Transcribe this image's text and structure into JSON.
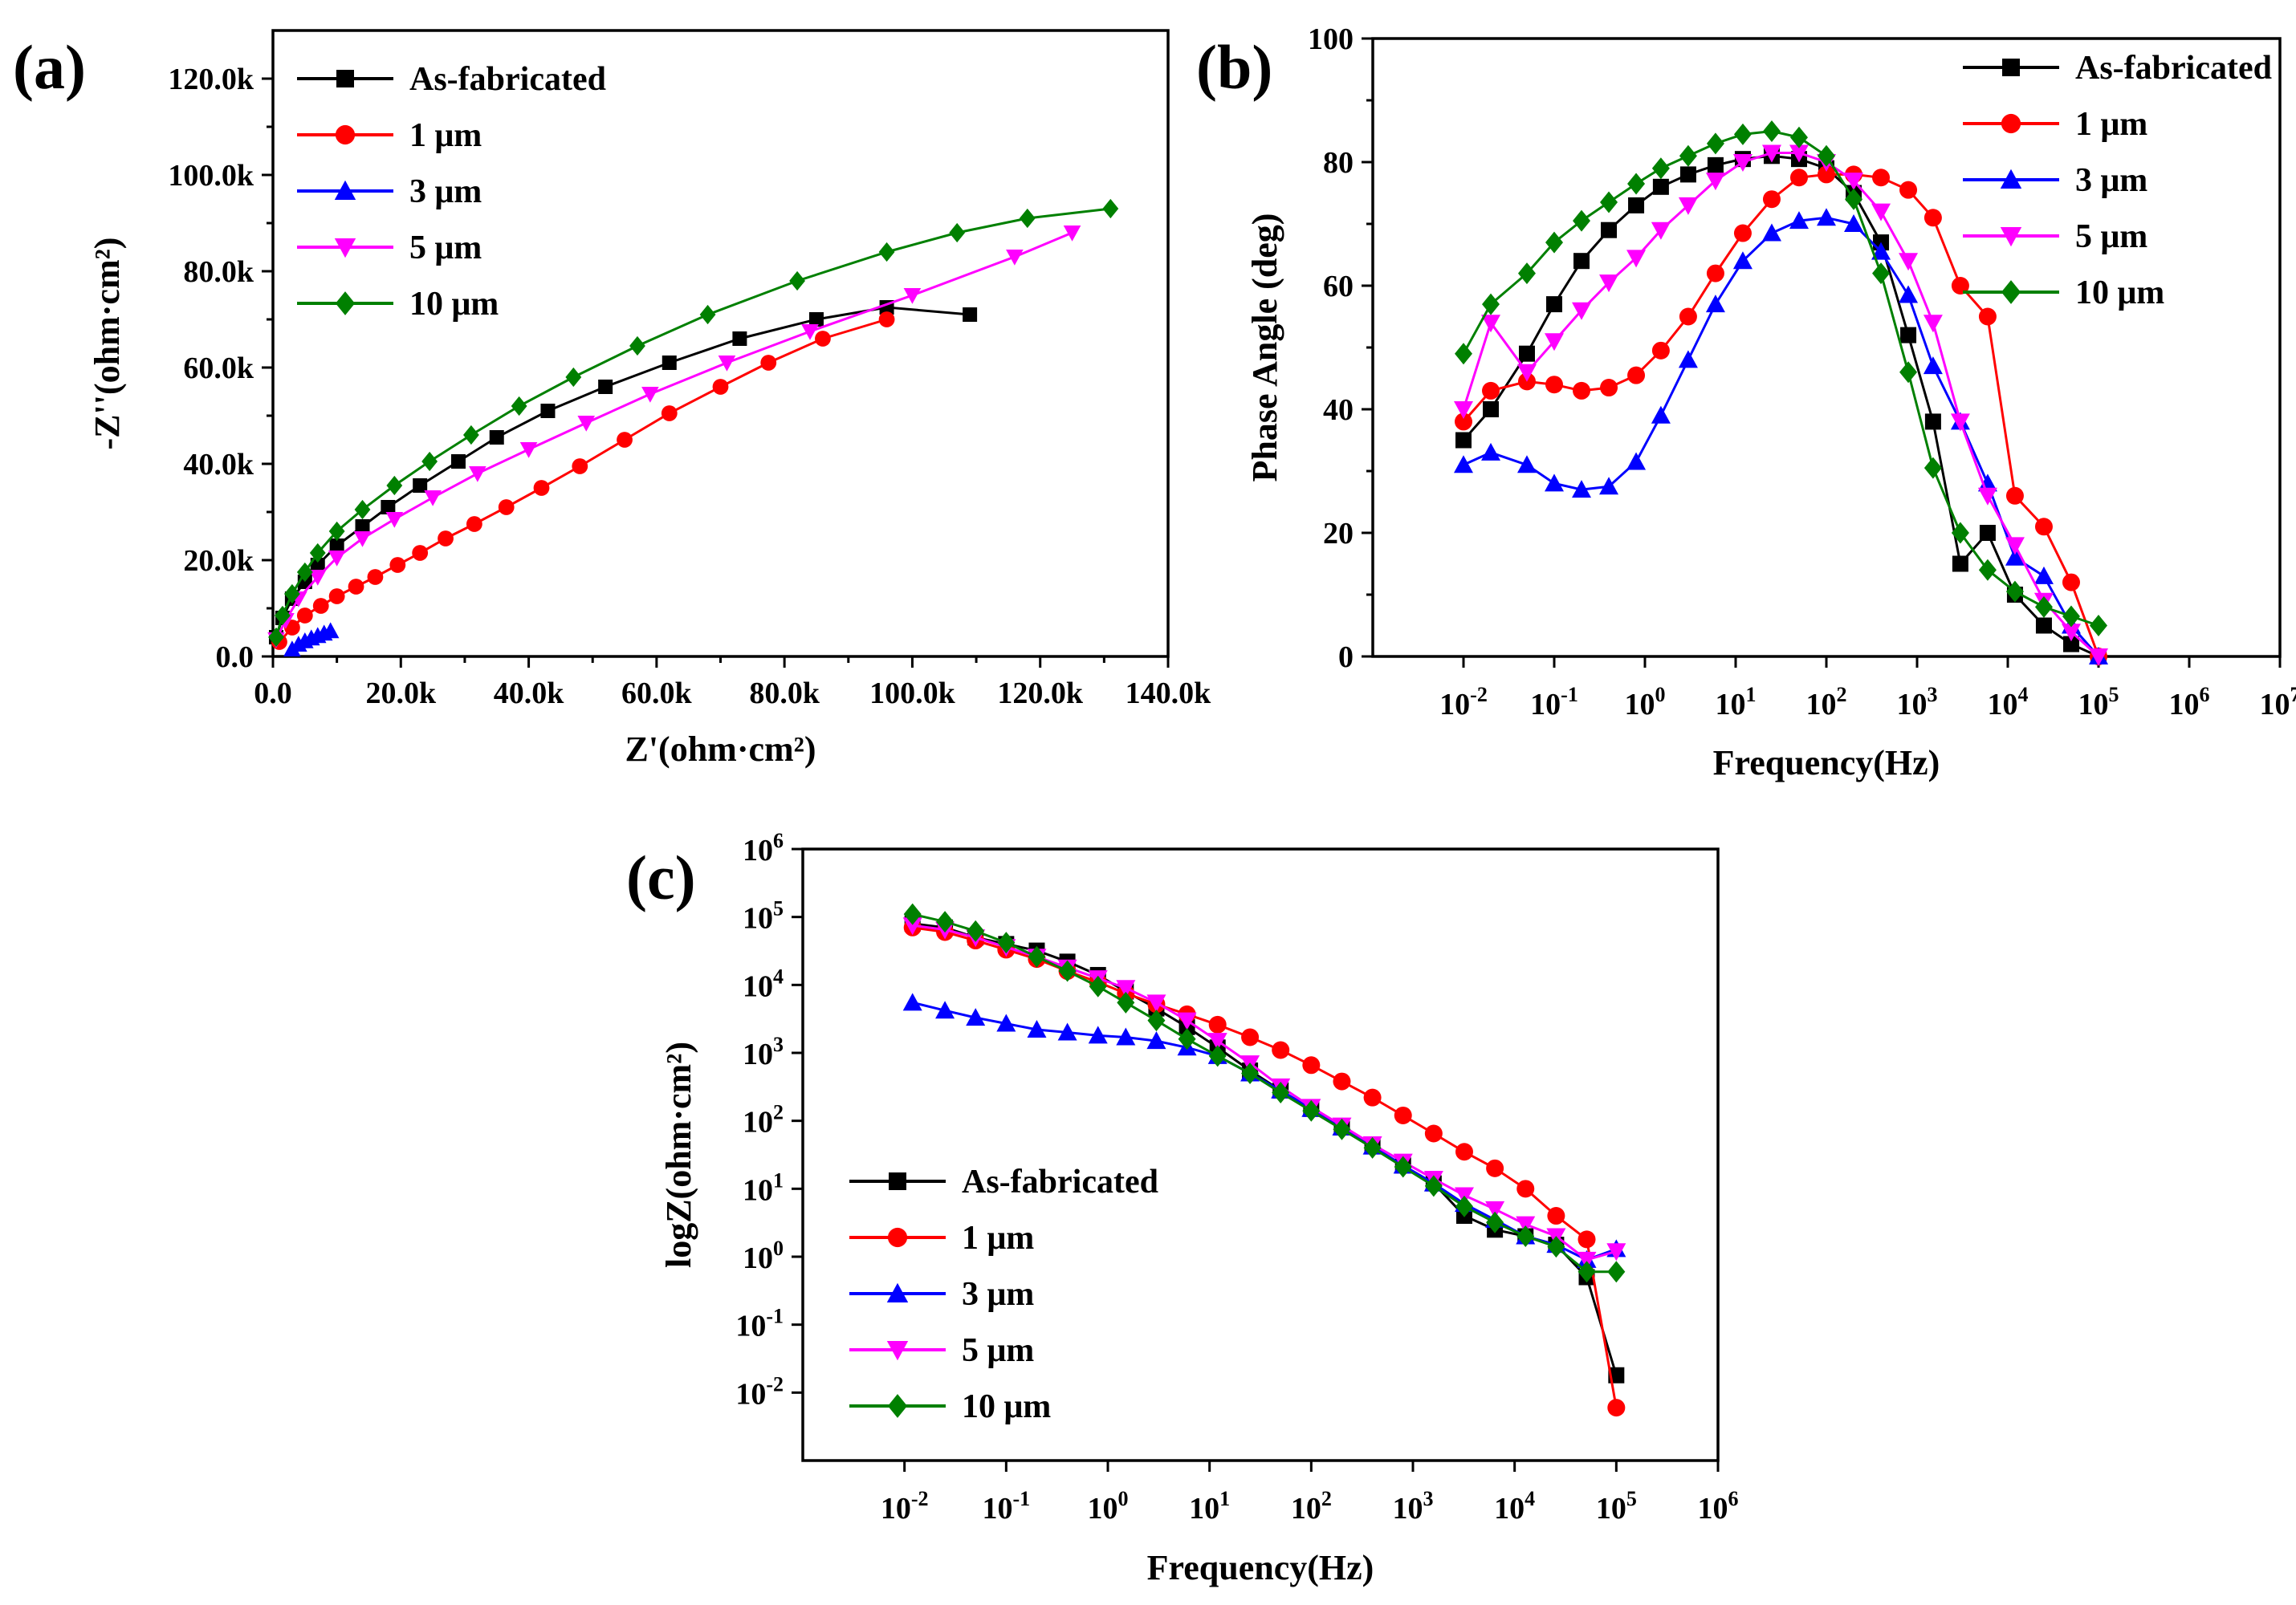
{
  "chart_data": [
    {
      "panel": "(a)",
      "type": "scatter",
      "xlabel": "Z'(ohm·cm²)",
      "ylabel": "-Z''(ohm·cm²)",
      "xlim": [
        0,
        140000
      ],
      "ylim": [
        0,
        130000
      ],
      "xticks": [
        "0.0",
        "20.0k",
        "40.0k",
        "60.0k",
        "80.0k",
        "100.0k",
        "120.0k",
        "140.0k"
      ],
      "yticks": [
        "0.0",
        "20.0k",
        "40.0k",
        "60.0k",
        "80.0k",
        "100.0k",
        "120.0k"
      ],
      "legend_position": "top-left",
      "series": [
        {
          "name": "As-fabricated",
          "color": "#000000",
          "marker": "square",
          "x": [
            500,
            1500,
            3000,
            5000,
            7000,
            10000,
            14000,
            18000,
            23000,
            29000,
            35000,
            43000,
            52000,
            62000,
            73000,
            85000,
            96000,
            109000
          ],
          "y": [
            4000,
            8000,
            12000,
            15500,
            19000,
            23000,
            27000,
            31000,
            35500,
            40500,
            45500,
            51000,
            56000,
            61000,
            66000,
            70000,
            72500,
            71000
          ]
        },
        {
          "name": "1 μm",
          "color": "#ff0000",
          "marker": "circle",
          "x": [
            1000,
            3000,
            5000,
            7500,
            10000,
            13000,
            16000,
            19500,
            23000,
            27000,
            31500,
            36500,
            42000,
            48000,
            55000,
            62000,
            70000,
            77500,
            86000,
            96000
          ],
          "y": [
            3000,
            6000,
            8500,
            10500,
            12500,
            14500,
            16500,
            19000,
            21500,
            24500,
            27500,
            31000,
            35000,
            39500,
            45000,
            50500,
            56000,
            61000,
            66000,
            70000
          ]
        },
        {
          "name": "3 μm",
          "color": "#0000ff",
          "marker": "triangle-up",
          "x": [
            3000,
            4000,
            5000,
            6000,
            7000,
            8000,
            9000
          ],
          "y": [
            1500,
            2500,
            3200,
            3800,
            4300,
            4800,
            5300
          ]
        },
        {
          "name": "5 μm",
          "color": "#ff00ff",
          "marker": "triangle-down",
          "x": [
            500,
            2000,
            4000,
            7000,
            10000,
            14000,
            19000,
            25000,
            32000,
            40000,
            49000,
            59000,
            71000,
            84000,
            100000,
            116000,
            125000
          ],
          "y": [
            3500,
            7500,
            12000,
            16500,
            20500,
            24500,
            28500,
            33000,
            38000,
            43000,
            48500,
            54500,
            61000,
            67500,
            75000,
            83000,
            88000
          ]
        },
        {
          "name": "10 μm",
          "color": "#008000",
          "marker": "diamond",
          "x": [
            500,
            1500,
            3000,
            5000,
            7000,
            10000,
            14000,
            19000,
            24500,
            31000,
            38500,
            47000,
            57000,
            68000,
            82000,
            96000,
            107000,
            118000,
            131000
          ],
          "y": [
            4000,
            8500,
            13000,
            17500,
            21500,
            26000,
            30500,
            35500,
            40500,
            46000,
            52000,
            58000,
            64500,
            71000,
            78000,
            84000,
            88000,
            91000,
            93000
          ]
        }
      ]
    },
    {
      "panel": "(b)",
      "type": "line",
      "xlabel": "Frequency(Hz)",
      "ylabel": "Phase Angle (deg)",
      "xscale": "log",
      "xlim": [
        0.001,
        10000000
      ],
      "ylim": [
        0,
        100
      ],
      "yticks": [
        "0",
        "20",
        "40",
        "60",
        "80",
        "100"
      ],
      "xtick_exponents": [
        "-2",
        "-1",
        "0",
        "1",
        "2",
        "3",
        "4",
        "5",
        "6",
        "7"
      ],
      "legend_position": "top-right",
      "series": [
        {
          "name": "As-fabricated",
          "color": "#000000",
          "marker": "square",
          "x": [
            0.01,
            0.02,
            0.05,
            0.1,
            0.2,
            0.4,
            0.8,
            1.5,
            3,
            6,
            12,
            25,
            50,
            100,
            200,
            400,
            800,
            1500,
            3000,
            6000,
            12000,
            25000,
            50000,
            100000
          ],
          "y": [
            35,
            40,
            49,
            57,
            64,
            69,
            73,
            76,
            78,
            79.5,
            80.5,
            81,
            80.5,
            79,
            75,
            67,
            52,
            38,
            15,
            20,
            10,
            5,
            2,
            0
          ]
        },
        {
          "name": "1 μm",
          "color": "#ff0000",
          "marker": "circle",
          "x": [
            0.01,
            0.02,
            0.05,
            0.1,
            0.2,
            0.4,
            0.8,
            1.5,
            3,
            6,
            12,
            25,
            50,
            100,
            200,
            400,
            800,
            1500,
            3000,
            6000,
            12000,
            25000,
            50000,
            100000
          ],
          "y": [
            38,
            43,
            44.5,
            44,
            43,
            43.5,
            45.5,
            49.5,
            55,
            62,
            68.5,
            74,
            77.5,
            78,
            78,
            77.5,
            75.5,
            71,
            60,
            55,
            26,
            21,
            12,
            0
          ]
        },
        {
          "name": "3 μm",
          "color": "#0000ff",
          "marker": "triangle-up",
          "x": [
            0.01,
            0.02,
            0.05,
            0.1,
            0.2,
            0.4,
            0.8,
            1.5,
            3,
            6,
            12,
            25,
            50,
            100,
            200,
            400,
            800,
            1500,
            3000,
            6000,
            12000,
            25000,
            50000,
            100000
          ],
          "y": [
            31,
            33,
            31,
            28,
            27,
            27.5,
            31.5,
            39,
            48,
            57,
            64,
            68.5,
            70.5,
            71,
            70,
            65.5,
            58.5,
            47,
            38,
            28,
            16,
            13,
            5,
            0
          ]
        },
        {
          "name": "5 μm",
          "color": "#ff00ff",
          "marker": "triangle-down",
          "x": [
            0.01,
            0.02,
            0.05,
            0.1,
            0.2,
            0.4,
            0.8,
            1.5,
            3,
            6,
            12,
            25,
            50,
            100,
            200,
            400,
            800,
            1500,
            3000,
            6000,
            12000,
            25000,
            50000,
            100000
          ],
          "y": [
            40,
            54,
            46,
            51,
            56,
            60.5,
            64.5,
            69,
            73,
            77,
            80,
            81.5,
            81.5,
            80,
            77,
            72,
            64,
            54,
            38,
            26,
            18,
            9,
            4,
            0
          ]
        },
        {
          "name": "10 μm",
          "color": "#008000",
          "marker": "diamond",
          "x": [
            0.01,
            0.02,
            0.05,
            0.1,
            0.2,
            0.4,
            0.8,
            1.5,
            3,
            6,
            12,
            25,
            50,
            100,
            200,
            400,
            800,
            1500,
            3000,
            6000,
            12000,
            25000,
            50000,
            100000
          ],
          "y": [
            49,
            57,
            62,
            67,
            70.5,
            73.5,
            76.5,
            79,
            81,
            83,
            84.5,
            85,
            84,
            81,
            74,
            62,
            46,
            30.5,
            20,
            14,
            10.5,
            8,
            6.5,
            5
          ]
        }
      ]
    },
    {
      "panel": "(c)",
      "type": "line",
      "xlabel": "Frequency(Hz)",
      "ylabel": "logZ(ohm·cm²)",
      "xscale": "log",
      "yscale": "log",
      "xlim": [
        0.001,
        1000000
      ],
      "ylim": [
        0.001,
        1000000
      ],
      "xtick_exponents": [
        "-2",
        "-1",
        "0",
        "1",
        "2",
        "3",
        "4",
        "5",
        "6"
      ],
      "ytick_exponents": [
        "-2",
        "-1",
        "0",
        "1",
        "2",
        "3",
        "4",
        "5",
        "6"
      ],
      "legend_position": "bottom-left",
      "series": [
        {
          "name": "As-fabricated",
          "color": "#000000",
          "marker": "square",
          "x": [
            0.012,
            0.025,
            0.05,
            0.1,
            0.2,
            0.4,
            0.8,
            1.5,
            3,
            6,
            12,
            25,
            50,
            100,
            200,
            400,
            800,
            1600,
            3200,
            6400,
            12800,
            25600,
            51200,
            100000
          ],
          "y": [
            80000,
            70000,
            50000,
            40000,
            32000,
            22000,
            14000,
            8000,
            4500,
            2400,
            1200,
            550,
            280,
            150,
            80,
            42,
            22,
            12,
            4,
            2.5,
            2,
            1.5,
            0.5,
            0.018
          ]
        },
        {
          "name": "1 μm",
          "color": "#ff0000",
          "marker": "circle",
          "x": [
            0.012,
            0.025,
            0.05,
            0.1,
            0.2,
            0.4,
            0.8,
            1.5,
            3,
            6,
            12,
            25,
            50,
            100,
            200,
            400,
            800,
            1600,
            3200,
            6400,
            12800,
            25600,
            51200,
            100000
          ],
          "y": [
            70000,
            60000,
            45000,
            33000,
            24000,
            16000,
            11000,
            7500,
            5200,
            3700,
            2600,
            1700,
            1100,
            660,
            380,
            220,
            120,
            65,
            35,
            20,
            10,
            4,
            1.8,
            0.006
          ]
        },
        {
          "name": "3 μm",
          "color": "#0000ff",
          "marker": "triangle-up",
          "x": [
            0.012,
            0.025,
            0.05,
            0.1,
            0.2,
            0.4,
            0.8,
            1.5,
            3,
            6,
            12,
            25,
            50,
            100,
            200,
            400,
            800,
            1600,
            3200,
            6400,
            12800,
            25600,
            51200,
            100000
          ],
          "y": [
            5500,
            4200,
            3300,
            2700,
            2200,
            2000,
            1800,
            1700,
            1500,
            1200,
            900,
            500,
            280,
            150,
            80,
            42,
            22,
            12,
            6,
            3.5,
            2,
            1.5,
            0.9,
            1.3
          ]
        },
        {
          "name": "5 μm",
          "color": "#ff00ff",
          "marker": "triangle-down",
          "x": [
            0.012,
            0.025,
            0.05,
            0.1,
            0.2,
            0.4,
            0.8,
            1.5,
            3,
            6,
            12,
            25,
            50,
            100,
            200,
            400,
            800,
            1600,
            3200,
            6400,
            12800,
            25600,
            51200,
            100000
          ],
          "y": [
            75000,
            65000,
            50000,
            36000,
            26000,
            18000,
            12500,
            9000,
            5500,
            3000,
            1500,
            700,
            320,
            160,
            85,
            45,
            25,
            14,
            8,
            5,
            3,
            2,
            0.9,
            1.2
          ]
        },
        {
          "name": "10 μm",
          "color": "#008000",
          "marker": "diamond",
          "x": [
            0.012,
            0.025,
            0.05,
            0.1,
            0.2,
            0.4,
            0.8,
            1.5,
            3,
            6,
            12,
            25,
            50,
            100,
            200,
            400,
            800,
            1600,
            3200,
            6400,
            12800,
            25600,
            51200,
            100000
          ],
          "y": [
            110000,
            85000,
            62000,
            42000,
            26000,
            16000,
            9500,
            5500,
            3000,
            1600,
            900,
            500,
            260,
            140,
            75,
            40,
            21,
            11,
            5.5,
            3.2,
            2,
            1.4,
            0.6,
            0.6
          ]
        }
      ]
    }
  ]
}
